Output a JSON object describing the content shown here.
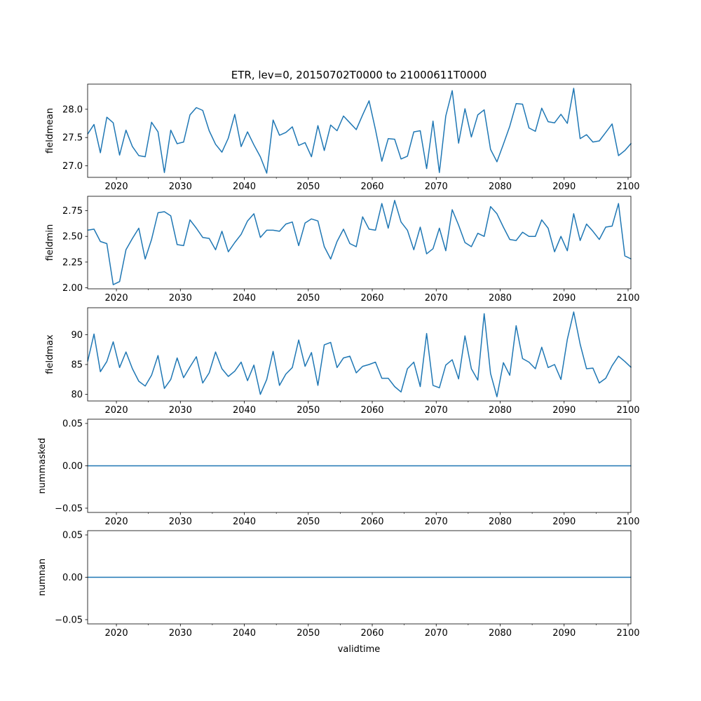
{
  "title": "ETR, lev=0, 20150702T0000 to 21000611T0000",
  "xlabel": "validtime",
  "line_color": "#1f77b4",
  "x_start": 2015.5,
  "x_end": 2100.44,
  "x_step": 1,
  "x_ticks": [
    2020,
    2030,
    2040,
    2050,
    2060,
    2070,
    2080,
    2090,
    2100
  ],
  "x_tick_labels": [
    "2020",
    "2030",
    "2040",
    "2050",
    "2060",
    "2070",
    "2080",
    "2090",
    "2100"
  ],
  "x_minor_ticks": [
    2015,
    2025,
    2035,
    2045,
    2055,
    2065,
    2075,
    2085,
    2095
  ],
  "chart_data": [
    {
      "type": "line",
      "ylabel": "fieldmean",
      "ylim": [
        26.795,
        28.445
      ],
      "y_ticks": [
        27.0,
        27.5,
        28.0
      ],
      "y_tick_labels": [
        "27.0",
        "27.5",
        "28.0"
      ],
      "values": [
        27.56,
        27.73,
        27.23,
        27.86,
        27.76,
        27.19,
        27.63,
        27.34,
        27.18,
        27.16,
        27.77,
        27.6,
        26.88,
        27.63,
        27.39,
        27.42,
        27.9,
        28.03,
        27.98,
        27.62,
        27.38,
        27.24,
        27.49,
        27.91,
        27.34,
        27.6,
        27.37,
        27.16,
        26.87,
        27.81,
        27.54,
        27.59,
        27.69,
        27.36,
        27.41,
        27.16,
        27.71,
        27.27,
        27.72,
        27.62,
        27.88,
        27.76,
        27.64,
        27.9,
        28.15,
        27.64,
        27.08,
        27.48,
        27.47,
        27.12,
        27.17,
        27.6,
        27.62,
        26.95,
        27.79,
        26.88,
        27.88,
        28.33,
        27.4,
        28.01,
        27.51,
        27.9,
        27.99,
        27.29,
        27.07,
        27.38,
        27.7,
        28.1,
        28.09,
        27.67,
        27.61,
        28.02,
        27.78,
        27.76,
        27.91,
        27.75,
        28.37,
        27.48,
        27.55,
        27.42,
        27.44,
        27.59,
        27.74,
        27.18,
        27.27,
        27.4
      ]
    },
    {
      "type": "line",
      "ylabel": "fieldmin",
      "ylim": [
        1.99,
        2.89
      ],
      "y_ticks": [
        2.0,
        2.25,
        2.5,
        2.75
      ],
      "y_tick_labels": [
        "2.00",
        "2.25",
        "2.50",
        "2.75"
      ],
      "values": [
        2.56,
        2.57,
        2.45,
        2.43,
        2.03,
        2.06,
        2.37,
        2.48,
        2.58,
        2.28,
        2.47,
        2.73,
        2.74,
        2.7,
        2.42,
        2.41,
        2.66,
        2.58,
        2.49,
        2.48,
        2.37,
        2.55,
        2.35,
        2.44,
        2.52,
        2.65,
        2.72,
        2.49,
        2.56,
        2.56,
        2.55,
        2.62,
        2.64,
        2.41,
        2.63,
        2.67,
        2.65,
        2.4,
        2.28,
        2.45,
        2.57,
        2.43,
        2.4,
        2.69,
        2.57,
        2.56,
        2.82,
        2.58,
        2.85,
        2.64,
        2.56,
        2.37,
        2.59,
        2.33,
        2.38,
        2.58,
        2.36,
        2.76,
        2.61,
        2.44,
        2.4,
        2.53,
        2.5,
        2.79,
        2.72,
        2.59,
        2.47,
        2.46,
        2.54,
        2.5,
        2.5,
        2.66,
        2.58,
        2.35,
        2.5,
        2.36,
        2.72,
        2.46,
        2.62,
        2.55,
        2.47,
        2.59,
        2.6,
        2.82,
        2.31,
        2.28
      ]
    },
    {
      "type": "line",
      "ylabel": "fieldmax",
      "ylim": [
        78.9,
        94.5
      ],
      "y_ticks": [
        80,
        85,
        90
      ],
      "y_tick_labels": [
        "80",
        "85",
        "90"
      ],
      "values": [
        85.5,
        90.1,
        83.8,
        85.5,
        88.8,
        84.5,
        87.1,
        84.3,
        82.2,
        81.4,
        83.2,
        86.5,
        81.0,
        82.5,
        86.1,
        82.8,
        84.6,
        86.3,
        81.9,
        83.6,
        87.1,
        84.3,
        83.0,
        83.9,
        85.4,
        82.3,
        84.9,
        80.0,
        82.5,
        87.2,
        81.5,
        83.4,
        84.5,
        89.1,
        84.7,
        87.0,
        81.5,
        88.3,
        88.7,
        84.5,
        86.1,
        86.4,
        83.6,
        84.7,
        85.0,
        85.4,
        82.7,
        82.7,
        81.3,
        80.4,
        84.3,
        85.4,
        81.3,
        90.2,
        81.5,
        81.1,
        84.9,
        85.8,
        82.6,
        89.8,
        84.3,
        82.4,
        93.5,
        83.5,
        79.6,
        85.3,
        83.2,
        91.5,
        86.0,
        85.4,
        84.3,
        87.9,
        84.5,
        85.0,
        82.5,
        89.2,
        93.8,
        88.4,
        84.3,
        84.4,
        81.9,
        82.7,
        84.8,
        86.4,
        85.5,
        84.5
      ]
    },
    {
      "type": "line",
      "ylabel": "nummasked",
      "ylim": [
        -0.055,
        0.055
      ],
      "y_ticks": [
        -0.05,
        0.0,
        0.05
      ],
      "y_tick_labels": [
        "−0.05",
        "0.00",
        "0.05"
      ],
      "values": [
        0,
        0,
        0,
        0,
        0,
        0,
        0,
        0,
        0,
        0,
        0,
        0,
        0,
        0,
        0,
        0,
        0,
        0,
        0,
        0,
        0,
        0,
        0,
        0,
        0,
        0,
        0,
        0,
        0,
        0,
        0,
        0,
        0,
        0,
        0,
        0,
        0,
        0,
        0,
        0,
        0,
        0,
        0,
        0,
        0,
        0,
        0,
        0,
        0,
        0,
        0,
        0,
        0,
        0,
        0,
        0,
        0,
        0,
        0,
        0,
        0,
        0,
        0,
        0,
        0,
        0,
        0,
        0,
        0,
        0,
        0,
        0,
        0,
        0,
        0,
        0,
        0,
        0,
        0,
        0,
        0,
        0,
        0,
        0,
        0,
        0
      ]
    },
    {
      "type": "line",
      "ylabel": "numnan",
      "ylim": [
        -0.055,
        0.055
      ],
      "y_ticks": [
        -0.05,
        0.0,
        0.05
      ],
      "y_tick_labels": [
        "−0.05",
        "0.00",
        "0.05"
      ],
      "values": [
        0,
        0,
        0,
        0,
        0,
        0,
        0,
        0,
        0,
        0,
        0,
        0,
        0,
        0,
        0,
        0,
        0,
        0,
        0,
        0,
        0,
        0,
        0,
        0,
        0,
        0,
        0,
        0,
        0,
        0,
        0,
        0,
        0,
        0,
        0,
        0,
        0,
        0,
        0,
        0,
        0,
        0,
        0,
        0,
        0,
        0,
        0,
        0,
        0,
        0,
        0,
        0,
        0,
        0,
        0,
        0,
        0,
        0,
        0,
        0,
        0,
        0,
        0,
        0,
        0,
        0,
        0,
        0,
        0,
        0,
        0,
        0,
        0,
        0,
        0,
        0,
        0,
        0,
        0,
        0,
        0,
        0,
        0,
        0,
        0,
        0
      ]
    }
  ]
}
